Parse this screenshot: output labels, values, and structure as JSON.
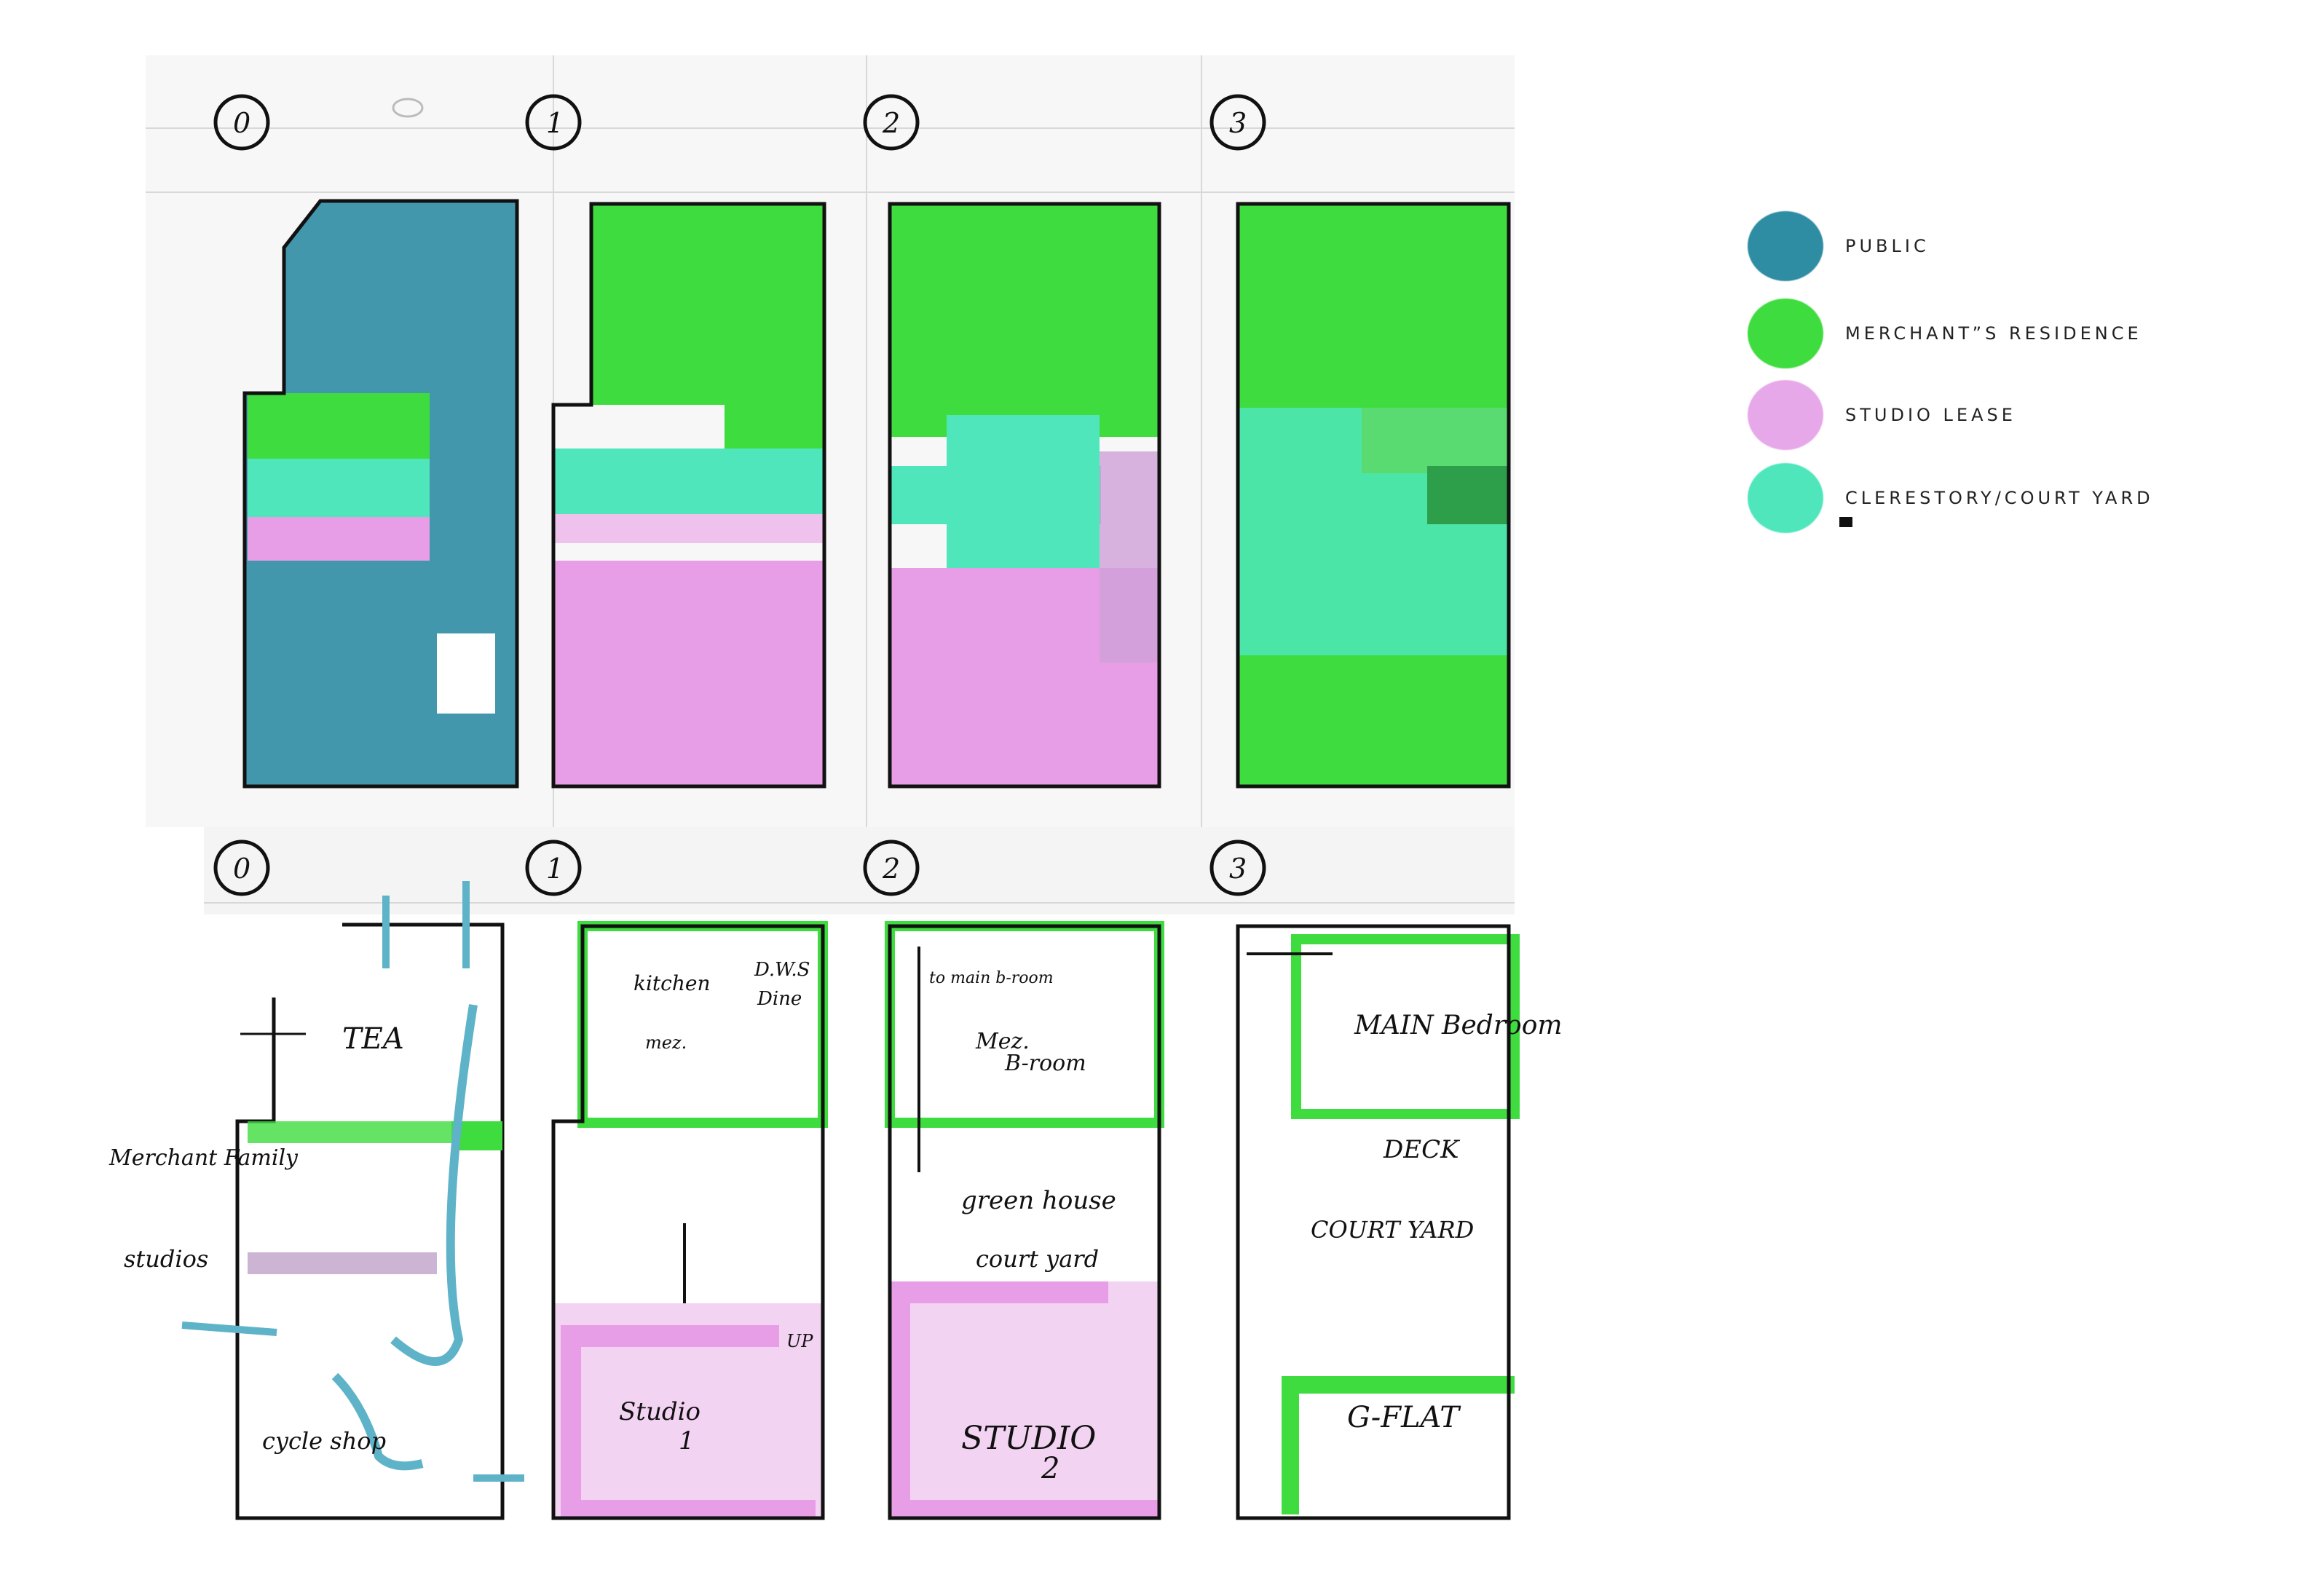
{
  "diagram": {
    "colors": {
      "public": "#2e8ca3",
      "merchant": "#3fdc3f",
      "studio": "#e79ee6",
      "clerestory": "#4fe6bb",
      "ink": "#111111"
    },
    "top_row_numbers": [
      "0",
      "1",
      "2",
      "3"
    ],
    "bottom_row_numbers": [
      "0",
      "1",
      "2",
      "3"
    ],
    "labels": {
      "tea": "TEA",
      "merchant_family": "Merchant Family",
      "studios": "studios",
      "cycle_shop": "cycle shop",
      "kitchen": "kitchen",
      "dws": "D.W.S",
      "dine": "Dine",
      "mez1": "mez.",
      "studio1": "Studio",
      "studio1_num": "1",
      "up": "UP",
      "to_main_bedroom": "to main b-room",
      "mez2": "Mez.",
      "b_room": "B-room",
      "green_house": "green house",
      "court_yard2": "court yard",
      "studio2": "STUDIO",
      "studio2_num": "2",
      "main_bedroom": "MAIN Bedroom",
      "deck": "DECK",
      "court_yard3": "COURT YARD",
      "g_flat": "G-FLAT"
    }
  },
  "legend": [
    {
      "label": "PUBLIC",
      "color": "#2e8ca3"
    },
    {
      "label": "MERCHANT”S RESIDENCE",
      "color": "#3fdc3f"
    },
    {
      "label": "STUDIO LEASE",
      "color": "#e79ee6"
    },
    {
      "label": "CLERESTORY/COURT YARD",
      "color": "#4fe6bb"
    }
  ]
}
